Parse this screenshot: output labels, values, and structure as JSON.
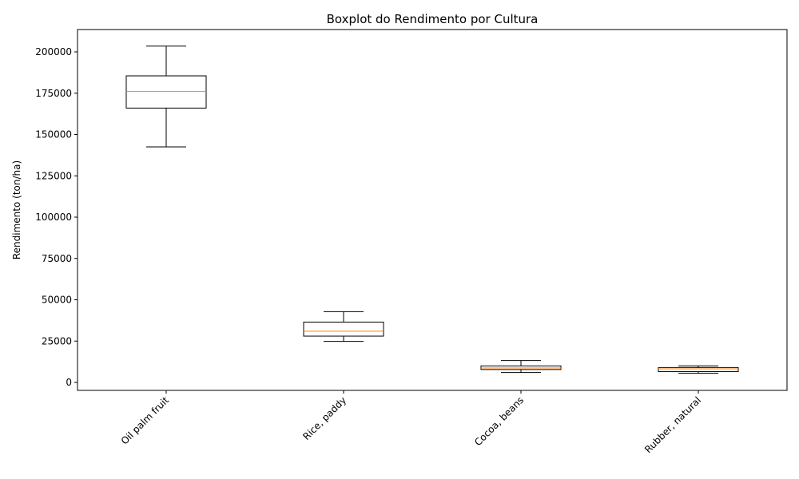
{
  "chart_data": {
    "type": "boxplot",
    "title": "Boxplot do Rendimento por Cultura",
    "xlabel": "",
    "ylabel": "Rendimento (ton/ha)",
    "ylim": [
      -4800,
      213000
    ],
    "yticks": [
      0,
      25000,
      50000,
      75000,
      100000,
      125000,
      150000,
      175000,
      200000
    ],
    "categories": [
      "Oil palm fruit",
      "Rice, paddy",
      "Cocoa, beans",
      "Rubber, natural"
    ],
    "boxes": [
      {
        "category": "Oil palm fruit",
        "whisker_low": 142500,
        "q1": 166000,
        "median": 176000,
        "q3": 185500,
        "whisker_high": 203500
      },
      {
        "category": "Rice, paddy",
        "whisker_low": 24800,
        "q1": 28000,
        "median": 31000,
        "q3": 36500,
        "whisker_high": 42800
      },
      {
        "category": "Cocoa, beans",
        "whisker_low": 6000,
        "q1": 7800,
        "median": 8700,
        "q3": 10000,
        "whisker_high": 13200
      },
      {
        "category": "Rubber, natural",
        "whisker_low": 5500,
        "q1": 6500,
        "median": 8200,
        "q3": 9000,
        "whisker_high": 10000
      }
    ],
    "grid": false,
    "legend": "none",
    "colors": {
      "box": "#000000",
      "median": "#ff7f0e",
      "axes": "#000000"
    }
  }
}
